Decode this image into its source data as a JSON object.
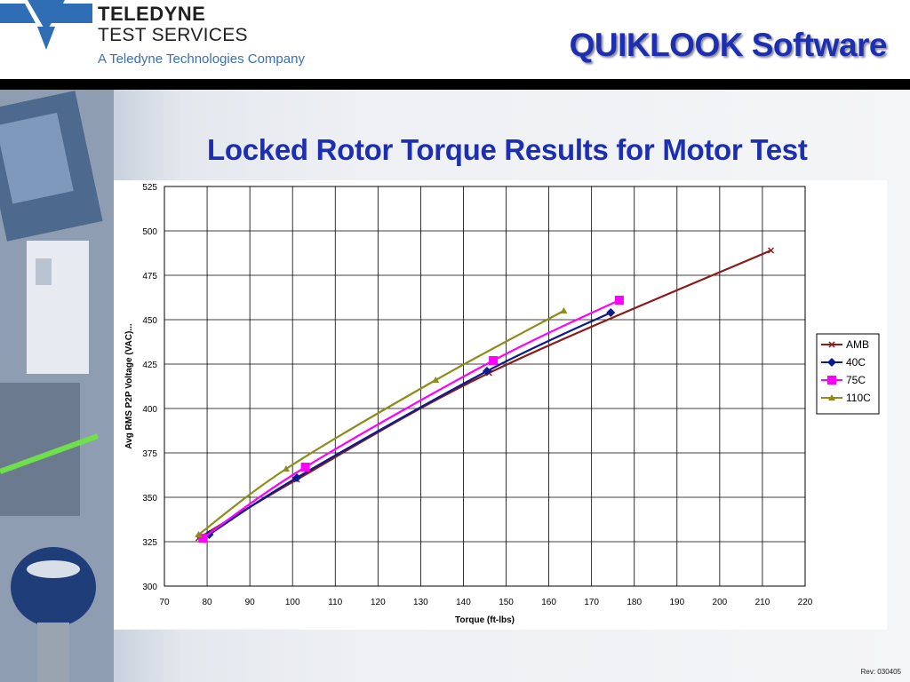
{
  "header": {
    "logo_line1": "TELEDYNE",
    "logo_line2": "TEST SERVICES",
    "logo_line3": "A Teledyne Technologies Company",
    "app_title": "QUIKLOOK Software"
  },
  "slide": {
    "title": "Locked Rotor Torque Results for Motor Test",
    "revision": "Rev: 030405"
  },
  "colors": {
    "title_blue": "#1c2fb0",
    "AMB": "#8b1a1a",
    "40C": "#0b1a8c",
    "75C": "#ff00ff",
    "110C": "#8c8c1a"
  },
  "chart_data": {
    "type": "line",
    "xlabel": "Torque (ft-lbs)",
    "ylabel": "Avg RMS P2P Voltage (VAC)...",
    "xlim": [
      70,
      220
    ],
    "ylim": [
      300,
      525
    ],
    "xticks": [
      70,
      80,
      90,
      100,
      110,
      120,
      130,
      140,
      150,
      160,
      170,
      180,
      190,
      200,
      210,
      220
    ],
    "yticks": [
      300,
      325,
      350,
      375,
      400,
      425,
      450,
      475,
      500,
      525
    ],
    "grid": true,
    "legend_position": "right",
    "series": [
      {
        "name": "AMB",
        "marker": "x",
        "points": [
          [
            78,
            327
          ],
          [
            101,
            360
          ],
          [
            146,
            420
          ],
          [
            212,
            489
          ]
        ]
      },
      {
        "name": "40C",
        "marker": "diamond",
        "points": [
          [
            80.5,
            329
          ],
          [
            101,
            361
          ],
          [
            145.5,
            421
          ],
          [
            174.5,
            454
          ]
        ]
      },
      {
        "name": "75C",
        "marker": "square",
        "points": [
          [
            79,
            327
          ],
          [
            103,
            367
          ],
          [
            147,
            427
          ],
          [
            176.5,
            461
          ]
        ]
      },
      {
        "name": "110C",
        "marker": "triangle",
        "points": [
          [
            78,
            329
          ],
          [
            98.5,
            366
          ],
          [
            133.5,
            416
          ],
          [
            163.5,
            455
          ]
        ]
      }
    ]
  }
}
